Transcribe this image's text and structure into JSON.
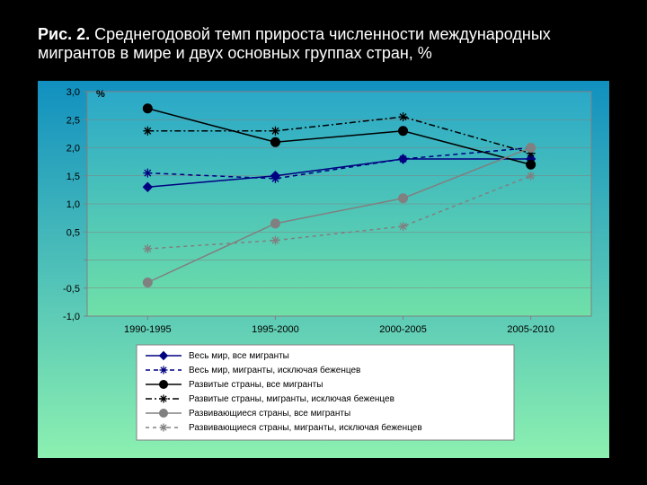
{
  "title_prefix": "Рис. 2.",
  "title_rest": " Среднегодовой темп прироста численности международных мигрантов в мире и двух основных группах стран, %",
  "chart": {
    "type": "line",
    "gradient_from": "#1190c0",
    "gradient_to": "#8cf0b0",
    "plot_bg_from": "#2aa8c8",
    "plot_bg_to": "#70e0a8",
    "grid_color": "#808080",
    "axis_color": "#808080",
    "ylabel": "%",
    "y_ticks": [
      -1.0,
      -0.5,
      0.0,
      0.5,
      1.0,
      1.5,
      2.0,
      2.5,
      3.0
    ],
    "y_tick_labels": [
      "-1,0",
      "-0,5",
      "",
      "0,5",
      "1,0",
      "1,5",
      "2,0",
      "2,5",
      "3,0"
    ],
    "ylim": [
      -1.0,
      3.0
    ],
    "x_labels": [
      "1990-1995",
      "1995-2000",
      "2000-2005",
      "2005-2010"
    ],
    "series": [
      {
        "name": "Весь мир, все мигранты",
        "color": "#000080",
        "marker": "diamond",
        "dash": "",
        "values": [
          1.3,
          1.5,
          1.8,
          1.8
        ]
      },
      {
        "name": "Весь мир, мигранты, исключая беженцев",
        "color": "#000080",
        "marker": "asterisk",
        "dash": "5,4",
        "values": [
          1.55,
          1.45,
          1.8,
          2.0
        ]
      },
      {
        "name": "Развитые страны, все мигранты",
        "color": "#000000",
        "marker": "circle",
        "dash": "",
        "values": [
          2.7,
          2.1,
          2.3,
          1.7
        ]
      },
      {
        "name": "Развитые страны, мигранты, исключая беженцев",
        "color": "#000000",
        "marker": "asterisk",
        "dash": "7,3,2,3",
        "values": [
          2.3,
          2.3,
          2.55,
          1.9
        ]
      },
      {
        "name": "Развивающиеся страны, все мигранты",
        "color": "#808080",
        "marker": "circle",
        "dash": "",
        "values": [
          -0.4,
          0.65,
          1.1,
          2.0
        ]
      },
      {
        "name": "Развивающиеся страны, мигранты, исключая беженцев",
        "color": "#808080",
        "marker": "asterisk",
        "dash": "4,4",
        "values": [
          0.2,
          0.35,
          0.6,
          1.5
        ]
      }
    ],
    "marker_size": 5,
    "line_width": 1.5,
    "font_size_axis": 11,
    "font_size_legend": 10
  }
}
